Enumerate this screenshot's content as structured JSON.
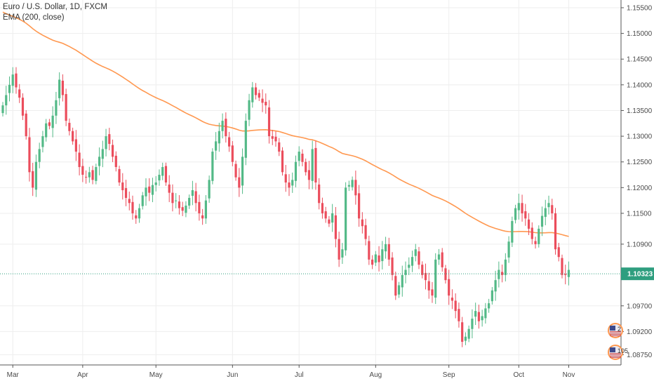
{
  "legend": {
    "title": "Euro / U.S. Dollar, 1D, FXCM",
    "indicator": "EMA (200, close)"
  },
  "current_price_label": "1.10323",
  "events": [
    {
      "icon": "flag-usa-icon",
      "label": "2"
    },
    {
      "icon": "flag-usa-icon",
      "label": "105"
    }
  ],
  "colors": {
    "up": "#53b987",
    "down": "#eb4d5c",
    "ema": "#ff9850",
    "price_line": "#2f9e7f",
    "price_tag": "#2f9e7f",
    "grid": "#eeeeee",
    "axis": "#555555"
  },
  "chart_data": {
    "type": "candlestick",
    "title": "Euro / U.S. Dollar, 1D, FXCM",
    "xlabel": "",
    "ylabel": "",
    "ylim": [
      1.0855,
      1.1565
    ],
    "yticks": [
      "1.15500",
      "1.15000",
      "1.14500",
      "1.14000",
      "1.13500",
      "1.13000",
      "1.12500",
      "1.12000",
      "1.11500",
      "1.10900",
      "1.10323",
      "1.09700",
      "1.09200",
      "1.08750"
    ],
    "xticks": [
      {
        "label": "Mar",
        "date": "2019-03-01"
      },
      {
        "label": "Apr",
        "date": "2019-04-01"
      },
      {
        "label": "May",
        "date": "2019-05-01"
      },
      {
        "label": "Jun",
        "date": "2019-06-03"
      },
      {
        "label": "Jul",
        "date": "2019-07-01"
      },
      {
        "label": "Aug",
        "date": "2019-08-01"
      },
      {
        "label": "Sep",
        "date": "2019-09-02"
      },
      {
        "label": "Oct",
        "date": "2019-10-01"
      },
      {
        "label": "Nov",
        "date": "2019-11-01"
      }
    ],
    "grid": true,
    "legend_position": "top-left",
    "last_price": 1.10323,
    "close": [
      1.136,
      1.138,
      1.14,
      1.142,
      1.1395,
      1.1375,
      1.134,
      1.13,
      1.123,
      1.12,
      1.125,
      1.1275,
      1.13,
      1.1325,
      1.132,
      1.134,
      1.137,
      1.141,
      1.138,
      1.133,
      1.131,
      1.129,
      1.127,
      1.124,
      1.1225,
      1.122,
      1.123,
      1.1215,
      1.124,
      1.126,
      1.1275,
      1.13,
      1.1285,
      1.126,
      1.124,
      1.121,
      1.1195,
      1.118,
      1.117,
      1.115,
      1.114,
      1.116,
      1.1185,
      1.12,
      1.119,
      1.1205,
      1.121,
      1.1225,
      1.124,
      1.121,
      1.119,
      1.117,
      1.1175,
      1.116,
      1.1155,
      1.1165,
      1.118,
      1.1195,
      1.117,
      1.115,
      1.114,
      1.1175,
      1.1215,
      1.127,
      1.129,
      1.131,
      1.133,
      1.13,
      1.128,
      1.125,
      1.122,
      1.12,
      1.126,
      1.133,
      1.137,
      1.1395,
      1.138,
      1.1375,
      1.1365,
      1.136,
      1.13,
      1.1295,
      1.129,
      1.127,
      1.123,
      1.121,
      1.12,
      1.1215,
      1.125,
      1.127,
      1.125,
      1.123,
      1.1215,
      1.1275,
      1.121,
      1.117,
      1.115,
      1.114,
      1.113,
      1.115,
      1.11,
      1.106,
      1.108,
      1.12,
      1.1205,
      1.1215,
      1.1185,
      1.114,
      1.1125,
      1.11,
      1.106,
      1.105,
      1.107,
      1.1055,
      1.108,
      1.109,
      1.106,
      1.103,
      1.099,
      1.101,
      1.103,
      1.104,
      1.105,
      1.1065,
      1.108,
      1.105,
      1.103,
      1.102,
      1.1,
      1.099,
      1.106,
      1.107,
      1.1045,
      1.102,
      1.099,
      1.098,
      1.096,
      1.094,
      1.09,
      1.091,
      1.0925,
      1.0945,
      1.096,
      1.094,
      1.095,
      1.0965,
      1.0975,
      1.1,
      1.102,
      1.104,
      1.103,
      1.106,
      1.1095,
      1.1135,
      1.116,
      1.117,
      1.115,
      1.114,
      1.112,
      1.11,
      1.109,
      1.112,
      1.1145,
      1.116,
      1.117,
      1.115,
      1.108,
      1.1065,
      1.103,
      1.103,
      1.104
    ]
  }
}
